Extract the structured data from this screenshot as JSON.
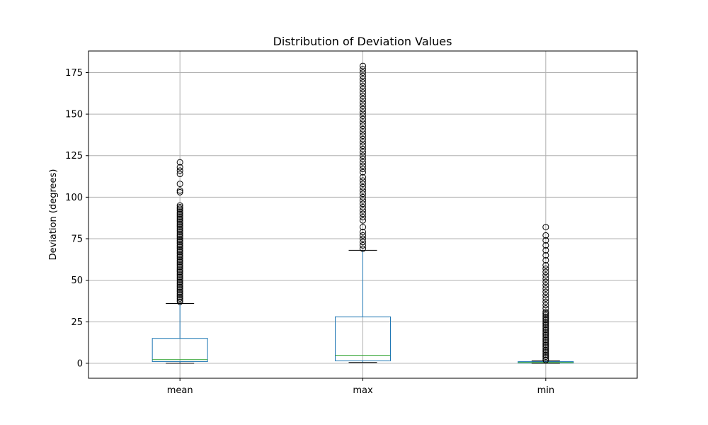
{
  "chart_data": {
    "type": "box",
    "title": "Distribution of Deviation Values",
    "xlabel": "",
    "ylabel": "Deviation (degrees)",
    "ylim": [
      -9,
      188
    ],
    "yticks": [
      0,
      25,
      50,
      75,
      100,
      125,
      150,
      175
    ],
    "grid": true,
    "categories": [
      "mean",
      "max",
      "min"
    ],
    "boxes": [
      {
        "name": "mean",
        "whisker_low": 0.0,
        "q1": 1.0,
        "median": 2.2,
        "q3": 15.0,
        "whisker_high": 36.0,
        "outliers": [
          37,
          38,
          39,
          40,
          41,
          42,
          43,
          44,
          45,
          46,
          47,
          48,
          49,
          50,
          51,
          52,
          53,
          54,
          55,
          56,
          57,
          58,
          59,
          60,
          61,
          62,
          63,
          64,
          65,
          66,
          67,
          68,
          69,
          70,
          71,
          72,
          73,
          74,
          75,
          76,
          77,
          78,
          79,
          80,
          81,
          82,
          83,
          84,
          85,
          86,
          87,
          88,
          89,
          90,
          91,
          92,
          93,
          94,
          95,
          103,
          104,
          108,
          114,
          116,
          118,
          121
        ]
      },
      {
        "name": "max",
        "whisker_low": 0.5,
        "q1": 1.5,
        "median": 4.8,
        "q3": 28.0,
        "whisker_high": 68.0,
        "outliers": [
          69,
          71,
          73,
          75,
          77,
          79,
          82,
          86,
          88,
          90,
          92,
          94,
          96,
          98,
          100,
          102,
          104,
          106,
          108,
          110,
          112,
          115,
          117,
          119,
          121,
          123,
          125,
          127,
          129,
          131,
          133,
          135,
          137,
          139,
          141,
          143,
          145,
          147,
          149,
          151,
          153,
          155,
          157,
          159,
          161,
          163,
          165,
          167,
          169,
          171,
          173,
          175,
          177,
          179
        ]
      },
      {
        "name": "min",
        "whisker_low": 0.0,
        "q1": 0.2,
        "median": 0.5,
        "q3": 1.0,
        "whisker_high": 1.5,
        "outliers": [
          2,
          3,
          4,
          5,
          6,
          7,
          8,
          9,
          10,
          11,
          12,
          13,
          14,
          15,
          16,
          17,
          18,
          19,
          20,
          21,
          22,
          23,
          24,
          25,
          26,
          27,
          28,
          29,
          30,
          31,
          33,
          35,
          37,
          39,
          41,
          43,
          45,
          47,
          49,
          51,
          53,
          55,
          57,
          59,
          62,
          65,
          68,
          71,
          74,
          77,
          82
        ]
      }
    ],
    "colors": {
      "box": "#1f77b4",
      "median": "#2ca02c",
      "whisker_cap": "#000000",
      "outlier": "#000000",
      "grid": "#b0b0b0"
    }
  }
}
